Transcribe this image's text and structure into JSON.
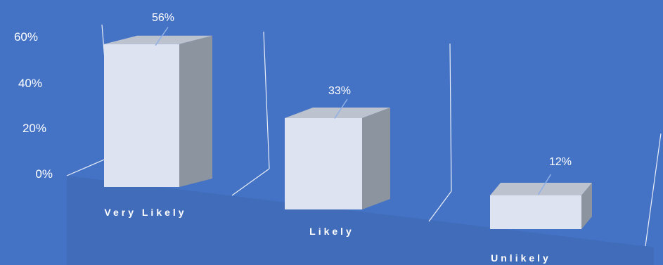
{
  "chart_data": {
    "type": "bar",
    "categories": [
      "Very Likely",
      "Likely",
      "Unlikely"
    ],
    "values": [
      56,
      33,
      12
    ],
    "value_labels": [
      "56%",
      "33%",
      "12%"
    ],
    "title": "",
    "xlabel": "",
    "ylabel": "",
    "ylim": [
      0,
      60
    ],
    "yticks": [
      "0%",
      "20%",
      "40%",
      "60%"
    ],
    "grid": false,
    "legend": "none",
    "style": "3d-perspective-columns"
  },
  "colors": {
    "background": "#4472C4",
    "bar_front": "#DDE3F1",
    "bar_top": "#BCC2CE",
    "bar_side": "#8C949F",
    "floor": "#3E67B0"
  }
}
